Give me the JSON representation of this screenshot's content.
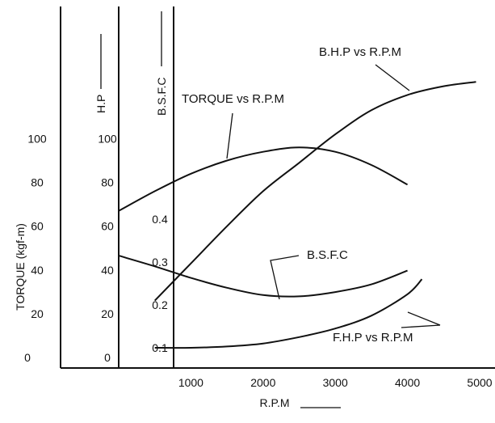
{
  "chart_data": {
    "type": "line",
    "xlabel": "R.P.M",
    "x_ticks": [
      "1000",
      "2000",
      "3000",
      "4000",
      "5000"
    ],
    "x_range": [
      0,
      5000
    ],
    "axes": {
      "torque": {
        "label": "TORQUE (kgf-m)",
        "ticks": [
          "0",
          "20",
          "40",
          "60",
          "80",
          "100"
        ],
        "range": [
          0,
          100
        ]
      },
      "hp": {
        "label": "H.P",
        "ticks": [
          "0",
          "20",
          "40",
          "60",
          "80",
          "100"
        ],
        "range": [
          0,
          100
        ]
      },
      "bsfc": {
        "label": "B.S.F.C",
        "ticks": [
          "0.1",
          "0.2",
          "0.3",
          "0.4"
        ],
        "range": [
          0.1,
          0.4
        ]
      }
    },
    "series": [
      {
        "name": "TORQUE vs R.P.M",
        "axis": "torque",
        "x": [
          0,
          500,
          1000,
          1500,
          2000,
          2500,
          3000,
          3500,
          4000
        ],
        "y": [
          67,
          76,
          84,
          90,
          94,
          96,
          94,
          88,
          79
        ]
      },
      {
        "name": "B.H.P vs R.P.M",
        "axis": "hp",
        "x": [
          500,
          1000,
          1500,
          2000,
          2500,
          3000,
          3500,
          4000,
          4500,
          4950
        ],
        "y": [
          26,
          43,
          60,
          76,
          89,
          102,
          113,
          120,
          124,
          126
        ]
      },
      {
        "name": "B.S.F.C",
        "axis": "bsfc",
        "x": [
          0,
          500,
          1000,
          1500,
          2000,
          2500,
          3000,
          3500,
          4000
        ],
        "y": [
          0.315,
          0.29,
          0.263,
          0.24,
          0.223,
          0.22,
          0.23,
          0.248,
          0.28
        ]
      },
      {
        "name": "F.H.P vs R.P.M",
        "axis": "bsfc",
        "x": [
          500,
          1000,
          1500,
          2000,
          2500,
          3000,
          3500,
          4000,
          4200
        ],
        "y": [
          0.1,
          0.1,
          0.103,
          0.11,
          0.125,
          0.145,
          0.175,
          0.225,
          0.26
        ]
      }
    ]
  }
}
